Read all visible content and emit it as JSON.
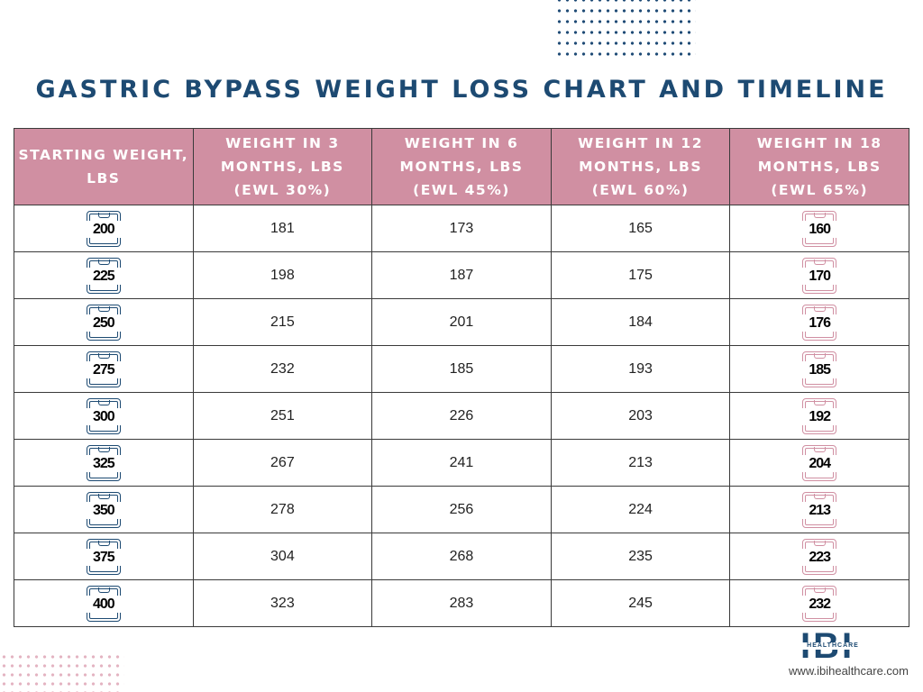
{
  "title": "GASTRIC BYPASS WEIGHT LOSS CHART AND TIMELINE",
  "chart_data": {
    "type": "table",
    "title": "GASTRIC BYPASS WEIGHT LOSS CHART AND TIMELINE",
    "columns": [
      [
        "STARTING WEIGHT,",
        "LBS"
      ],
      [
        "WEIGHT IN 3",
        "MONTHS, LBS",
        "(EWL 30%)"
      ],
      [
        "WEIGHT IN 6",
        "MONTHS, LBS",
        "(EWL 45%)"
      ],
      [
        "WEIGHT IN 12",
        "MONTHS, LBS",
        "(EWL 60%)"
      ],
      [
        "WEIGHT IN 18",
        "MONTHS, LBS",
        "(EWL 65%)"
      ]
    ],
    "rows": [
      [
        "200",
        "181",
        "173",
        "165",
        "160"
      ],
      [
        "225",
        "198",
        "187",
        "175",
        "170"
      ],
      [
        "250",
        "215",
        "201",
        "184",
        "176"
      ],
      [
        "275",
        "232",
        "185",
        "193",
        "185"
      ],
      [
        "300",
        "251",
        "226",
        "203",
        "192"
      ],
      [
        "325",
        "267",
        "241",
        "213",
        "204"
      ],
      [
        "350",
        "278",
        "256",
        "224",
        "213"
      ],
      [
        "375",
        "304",
        "268",
        "235",
        "223"
      ],
      [
        "400",
        "323",
        "283",
        "245",
        "232"
      ]
    ]
  },
  "logo": {
    "letters": "IBI",
    "band": "HEALTHCARE"
  },
  "website": "www.ibihealthcare.com",
  "colors": {
    "navy": "#1d4a72",
    "pink": "#d08fa2",
    "pink_dots": "#e3b3c1"
  },
  "icons": {
    "start_column": "scale-icon",
    "end_column": "scale-icon"
  }
}
